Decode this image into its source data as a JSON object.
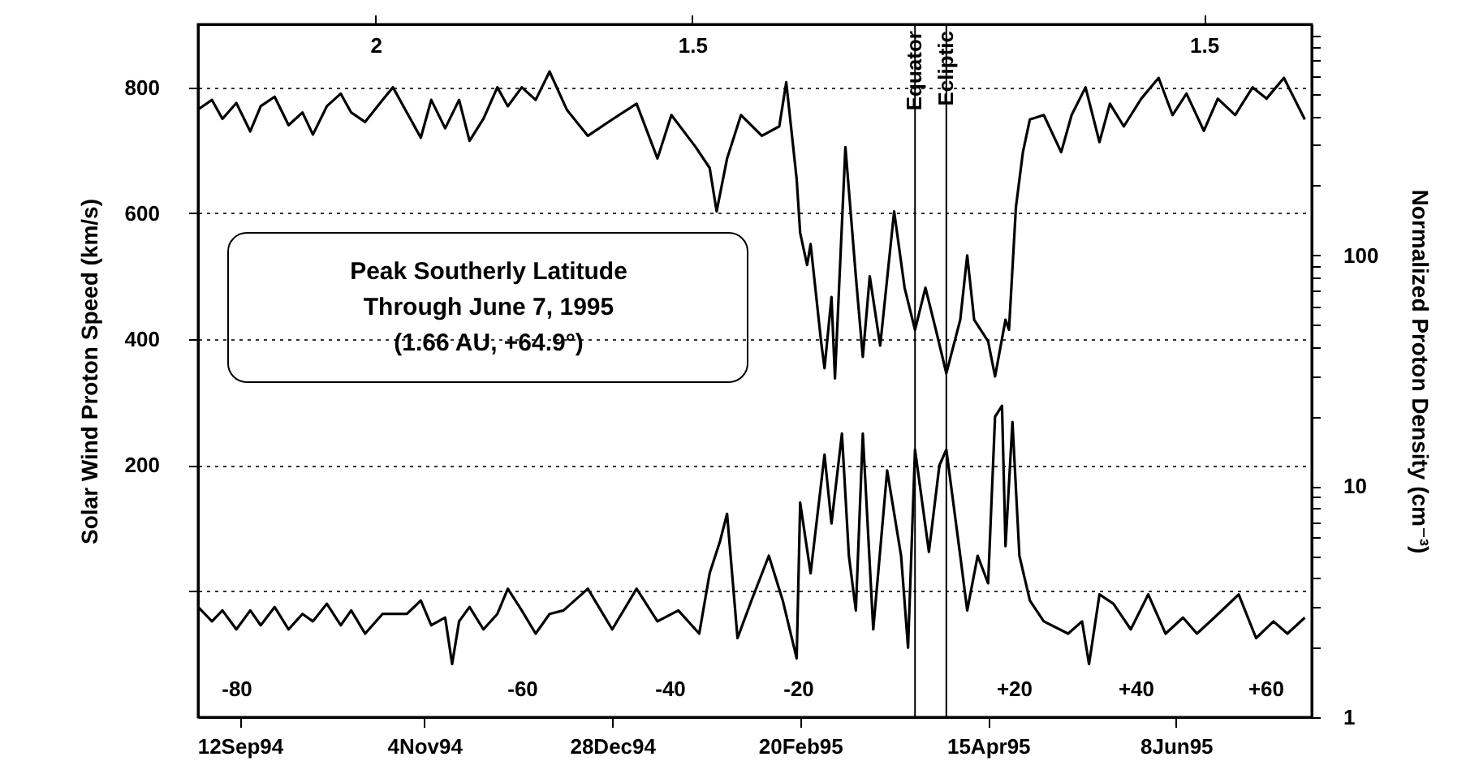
{
  "chart_data": {
    "type": "line",
    "ylabel": "Solar Wind Proton Speed (km/s)",
    "y2label": "Normalized Proton Density (cm⁻³)",
    "xlim": [
      "1994-08-31",
      "1995-07-17"
    ],
    "xticks": [
      {
        "value": "1994-09-12",
        "label": "12Sep94"
      },
      {
        "value": "1994-11-04",
        "label": "4Nov94"
      },
      {
        "value": "1994-12-28",
        "label": "28Dec94"
      },
      {
        "value": "1995-02-20",
        "label": "20Feb95"
      },
      {
        "value": "1995-04-15",
        "label": "15Apr95"
      },
      {
        "value": "1995-06-08",
        "label": "8Jun95"
      }
    ],
    "x2lim": [
      "1994-08-31",
      "1995-07-17"
    ],
    "x2ticks": [
      {
        "value": "1994-10-21",
        "label": "2"
      },
      {
        "value": "1995-01-20",
        "label": "1.5"
      },
      {
        "value": "1995-06-16",
        "label": "1.5"
      }
    ],
    "ylim": [
      -200,
      900
    ],
    "yticks": [
      {
        "value": 0,
        "label": null
      },
      200,
      400,
      600,
      800
    ],
    "y2lim": [
      1,
      1000
    ],
    "y2ticks": [
      1,
      {
        "value": 2,
        "label": null
      },
      {
        "value": 3,
        "label": null
      },
      {
        "value": 4,
        "label": null
      },
      {
        "value": 5,
        "label": null
      },
      {
        "value": 6,
        "label": null
      },
      {
        "value": 7,
        "label": null
      },
      {
        "value": 8,
        "label": null
      },
      {
        "value": 9,
        "label": null
      },
      10,
      {
        "value": 20,
        "label": null
      },
      {
        "value": 30,
        "label": null
      },
      {
        "value": 40,
        "label": null
      },
      {
        "value": 50,
        "label": null
      },
      {
        "value": 60,
        "label": null
      },
      {
        "value": 70,
        "label": null
      },
      {
        "value": 80,
        "label": null
      },
      {
        "value": 90,
        "label": null
      },
      100,
      {
        "value": 200,
        "label": null
      },
      {
        "value": 300,
        "label": null
      },
      {
        "value": 400,
        "label": null
      },
      {
        "value": 500,
        "label": null
      },
      {
        "value": 600,
        "label": null
      },
      {
        "value": 700,
        "label": null
      },
      {
        "value": 800,
        "label": null
      },
      {
        "value": 900,
        "label": null
      }
    ],
    "log": "y2",
    "grid": "y",
    "line_style": "solid",
    "series": [
      {
        "color": "#000000",
        "x": [
          "1994-08-31",
          "1994-09-04",
          "1994-09-07",
          "1994-09-11",
          "1994-09-15",
          "1994-09-18",
          "1994-09-22",
          "1994-09-26",
          "1994-09-30",
          "1994-10-03",
          "1994-10-07",
          "1994-10-11",
          "1994-10-14",
          "1994-10-18",
          "1994-10-23",
          "1994-10-26",
          "1994-10-30",
          "1994-11-03",
          "1994-11-06",
          "1994-11-10",
          "1994-11-14",
          "1994-11-17",
          "1994-11-21",
          "1994-11-25",
          "1994-11-28",
          "1994-12-02",
          "1994-12-06",
          "1994-12-10",
          "1994-12-15",
          "1994-12-21",
          "1994-12-28",
          "1995-01-04",
          "1995-01-10",
          "1995-01-14",
          "1995-01-21",
          "1995-01-25",
          "1995-01-27",
          "1995-01-30",
          "1995-02-03",
          "1995-02-09",
          "1995-02-14",
          "1995-02-16",
          "1995-02-19",
          "1995-02-20",
          "1995-02-22",
          "1995-02-23",
          "1995-02-26",
          "1995-02-27",
          "1995-03-01",
          "1995-03-02",
          "1995-03-05",
          "1995-03-08",
          "1995-03-10",
          "1995-03-12",
          "1995-03-15",
          "1995-03-19",
          "1995-03-22",
          "1995-03-25",
          "1995-03-28",
          "1995-03-31",
          "1995-04-03",
          "1995-04-07",
          "1995-04-09",
          "1995-04-11",
          "1995-04-15",
          "1995-04-17",
          "1995-04-20",
          "1995-04-21",
          "1995-04-23",
          "1995-04-25",
          "1995-04-27",
          "1995-05-01",
          "1995-05-06",
          "1995-05-09",
          "1995-05-13",
          "1995-05-17",
          "1995-05-20",
          "1995-05-24",
          "1995-05-29",
          "1995-06-03",
          "1995-06-07",
          "1995-06-11",
          "1995-06-16",
          "1995-06-20",
          "1995-06-25",
          "1995-06-30",
          "1995-07-04",
          "1995-07-09",
          "1995-07-12",
          "1995-07-15"
        ],
        "values": [
          765,
          780,
          750,
          775,
          730,
          770,
          785,
          740,
          760,
          725,
          770,
          790,
          760,
          745,
          780,
          800,
          760,
          720,
          780,
          735,
          780,
          715,
          750,
          800,
          770,
          800,
          780,
          825,
          764,
          723,
          749,
          774,
          687,
          756,
          705,
          672,
          603,
          687,
          756,
          723,
          738,
          808,
          654,
          569,
          518,
          551,
          397,
          354,
          467,
          338,
          705,
          500,
          372,
          500,
          390,
          603,
          482,
          415,
          482,
          415,
          346,
          431,
          533,
          431,
          397,
          341,
          431,
          415,
          610,
          697,
          749,
          756,
          697,
          756,
          800,
          713,
          774,
          738,
          782,
          815,
          756,
          790,
          731,
          782,
          756,
          800,
          782,
          815,
          782,
          749
        ]
      },
      {
        "color": "#000000",
        "axis": "y2",
        "x": [
          "1994-08-31",
          "1994-09-04",
          "1994-09-07",
          "1994-09-11",
          "1994-09-15",
          "1994-09-18",
          "1994-09-22",
          "1994-09-26",
          "1994-09-30",
          "1994-10-03",
          "1994-10-07",
          "1994-10-11",
          "1994-10-14",
          "1994-10-18",
          "1994-10-23",
          "1994-10-26",
          "1994-10-30",
          "1994-11-03",
          "1994-11-06",
          "1994-11-10",
          "1994-11-12",
          "1994-11-14",
          "1994-11-17",
          "1994-11-21",
          "1994-11-25",
          "1994-11-28",
          "1994-12-02",
          "1994-12-06",
          "1994-12-10",
          "1994-12-14",
          "1994-12-21",
          "1994-12-28",
          "1995-01-04",
          "1995-01-10",
          "1995-01-16",
          "1995-01-22",
          "1995-01-25",
          "1995-01-28",
          "1995-01-30",
          "1995-02-02",
          "1995-02-06",
          "1995-02-11",
          "1995-02-15",
          "1995-02-19",
          "1995-02-20",
          "1995-02-23",
          "1995-02-27",
          "1995-03-01",
          "1995-03-04",
          "1995-03-06",
          "1995-03-08",
          "1995-03-10",
          "1995-03-13",
          "1995-03-17",
          "1995-03-21",
          "1995-03-23",
          "1995-03-25",
          "1995-03-29",
          "1995-04-01",
          "1995-04-03",
          "1995-04-07",
          "1995-04-09",
          "1995-04-12",
          "1995-04-15",
          "1995-04-17",
          "1995-04-19",
          "1995-04-20",
          "1995-04-22",
          "1995-04-24",
          "1995-04-27",
          "1995-05-01",
          "1995-05-08",
          "1995-05-12",
          "1995-05-14",
          "1995-05-17",
          "1995-05-21",
          "1995-05-26",
          "1995-05-31",
          "1995-06-05",
          "1995-06-10",
          "1995-06-14",
          "1995-06-19",
          "1995-06-26",
          "1995-07-01",
          "1995-07-06",
          "1995-07-10",
          "1995-07-15"
        ],
        "values": [
          3.0,
          2.6,
          2.9,
          2.4,
          2.9,
          2.5,
          3.0,
          2.4,
          2.8,
          2.6,
          3.1,
          2.5,
          2.9,
          2.3,
          2.8,
          2.8,
          2.8,
          3.2,
          2.5,
          2.7,
          1.7,
          2.6,
          3.0,
          2.4,
          2.8,
          3.6,
          2.9,
          2.3,
          2.8,
          2.9,
          3.6,
          2.4,
          3.6,
          2.6,
          2.9,
          2.3,
          4.2,
          5.8,
          7.6,
          2.2,
          3.2,
          5.0,
          3.2,
          1.8,
          8.5,
          4.2,
          13.7,
          6.9,
          16.9,
          5.0,
          2.9,
          16.9,
          2.4,
          11.7,
          5.0,
          2.0,
          14.4,
          5.2,
          12.3,
          14.4,
          5.0,
          2.9,
          5.0,
          3.8,
          20.0,
          22.3,
          5.5,
          19.0,
          5.0,
          3.2,
          2.6,
          2.3,
          2.6,
          1.7,
          3.4,
          3.1,
          2.4,
          3.4,
          2.3,
          2.7,
          2.3,
          2.7,
          3.4,
          2.2,
          2.6,
          2.3,
          2.7
        ]
      }
    ],
    "ref_lines": [
      {
        "axis": "x",
        "value": "1995-03-25",
        "label": "Equator"
      },
      {
        "axis": "x",
        "value": "1995-04-03",
        "label": "Ecliptic"
      }
    ],
    "annotations": [
      "Peak Southerly Latitude\nThrough June 7, 1995\n(1.66 AU, +64.9°)",
      "-80",
      "-60",
      "-40",
      "-20",
      "+20",
      "+40",
      "+60"
    ]
  }
}
